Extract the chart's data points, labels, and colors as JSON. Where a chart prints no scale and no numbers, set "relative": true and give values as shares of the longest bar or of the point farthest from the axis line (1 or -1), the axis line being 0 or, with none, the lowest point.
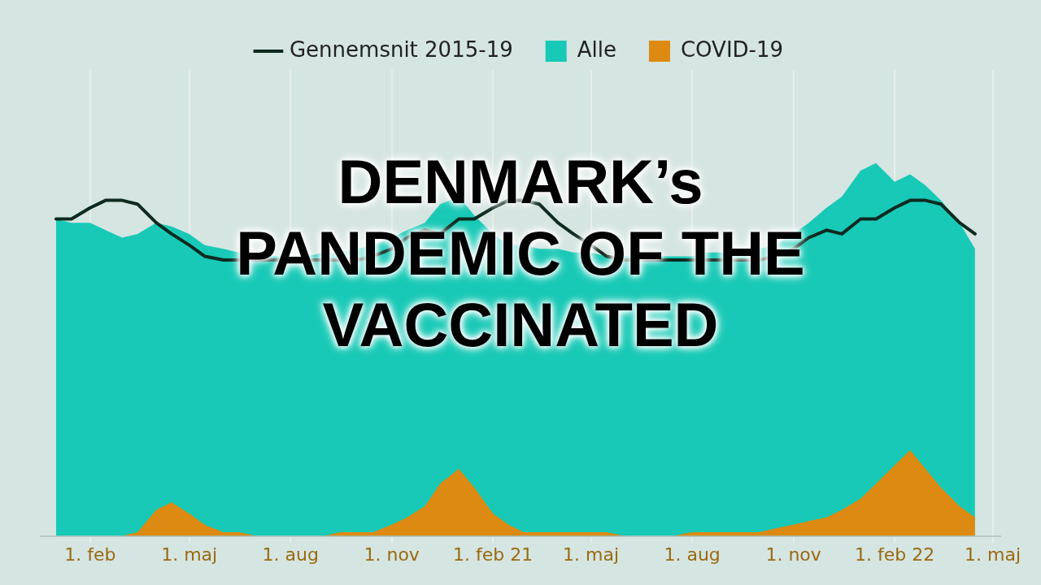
{
  "chart_data": {
    "type": "area",
    "title": "DENMARK’s PANDEMIC OF THE VACCINATED",
    "relative": true,
    "legend": "top",
    "grid": "x",
    "tick_labels": "x",
    "x": [
      "2020-01-01",
      "2020-01-15",
      "2020-02-01",
      "2020-02-15",
      "2020-03-01",
      "2020-03-15",
      "2020-04-01",
      "2020-04-15",
      "2020-05-01",
      "2020-05-15",
      "2020-06-01",
      "2020-06-15",
      "2020-07-01",
      "2020-07-15",
      "2020-08-01",
      "2020-08-15",
      "2020-09-01",
      "2020-09-15",
      "2020-10-01",
      "2020-10-15",
      "2020-11-01",
      "2020-11-15",
      "2020-12-01",
      "2020-12-15",
      "2021-01-01",
      "2021-01-15",
      "2021-02-01",
      "2021-02-15",
      "2021-03-01",
      "2021-03-15",
      "2021-04-01",
      "2021-04-15",
      "2021-05-01",
      "2021-05-15",
      "2021-06-01",
      "2021-06-15",
      "2021-07-01",
      "2021-07-15",
      "2021-08-01",
      "2021-08-15",
      "2021-09-01",
      "2021-09-15",
      "2021-10-01",
      "2021-10-15",
      "2021-11-01",
      "2021-11-15",
      "2021-12-01",
      "2021-12-15",
      "2022-01-01",
      "2022-01-15",
      "2022-02-01",
      "2022-02-15",
      "2022-03-01",
      "2022-03-15",
      "2022-04-01",
      "2022-04-15"
    ],
    "xlim": [
      "2019-12-18",
      "2022-05-08"
    ],
    "xticks": [
      {
        "value": "2020-02-01",
        "label": "1. feb"
      },
      {
        "value": "2020-05-01",
        "label": "1. maj"
      },
      {
        "value": "2020-08-01",
        "label": "1. aug"
      },
      {
        "value": "2020-11-01",
        "label": "1. nov"
      },
      {
        "value": "2021-02-01",
        "label": "1. feb 21"
      },
      {
        "value": "2021-05-01",
        "label": "1. maj"
      },
      {
        "value": "2021-08-01",
        "label": "1. aug"
      },
      {
        "value": "2021-11-01",
        "label": "1. nov"
      },
      {
        "value": "2022-02-01",
        "label": "1. feb 22"
      },
      {
        "value": "2022-05-01",
        "label": "1. maj"
      }
    ],
    "series": [
      {
        "name": "Gennemsnit 2015-19",
        "type": "line",
        "color": "#0f2a1f",
        "values": [
          0.85,
          0.85,
          0.88,
          0.9,
          0.9,
          0.89,
          0.84,
          0.81,
          0.78,
          0.75,
          0.74,
          0.74,
          0.74,
          0.74,
          0.74,
          0.74,
          0.74,
          0.74,
          0.74,
          0.75,
          0.77,
          0.8,
          0.82,
          0.81,
          0.85,
          0.85,
          0.88,
          0.9,
          0.9,
          0.89,
          0.84,
          0.81,
          0.78,
          0.75,
          0.74,
          0.74,
          0.74,
          0.74,
          0.74,
          0.74,
          0.74,
          0.74,
          0.74,
          0.75,
          0.77,
          0.8,
          0.82,
          0.81,
          0.85,
          0.85,
          0.88,
          0.9,
          0.9,
          0.89,
          0.84,
          0.81
        ]
      },
      {
        "name": "Alle",
        "color": "#17c9b6",
        "values": [
          0.85,
          0.84,
          0.84,
          0.82,
          0.8,
          0.81,
          0.84,
          0.83,
          0.81,
          0.78,
          0.77,
          0.76,
          0.75,
          0.75,
          0.75,
          0.75,
          0.76,
          0.76,
          0.77,
          0.78,
          0.8,
          0.82,
          0.84,
          0.89,
          0.91,
          0.86,
          0.81,
          0.78,
          0.78,
          0.77,
          0.77,
          0.76,
          0.76,
          0.75,
          0.75,
          0.75,
          0.75,
          0.75,
          0.75,
          0.76,
          0.76,
          0.76,
          0.77,
          0.78,
          0.81,
          0.84,
          0.88,
          0.91,
          0.98,
          1,
          0.95,
          0.97,
          0.94,
          0.9,
          0.84,
          0.77
        ]
      },
      {
        "name": "COVID-19",
        "color": "#dd8a12",
        "values": [
          0,
          0,
          0,
          0,
          0,
          0.01,
          0.07,
          0.09,
          0.06,
          0.03,
          0.01,
          0.01,
          0,
          0,
          0,
          0,
          0,
          0.01,
          0.01,
          0.01,
          0.03,
          0.05,
          0.08,
          0.14,
          0.18,
          0.13,
          0.06,
          0.03,
          0.01,
          0.01,
          0.01,
          0.01,
          0.01,
          0.01,
          0,
          0,
          0,
          0,
          0.01,
          0.01,
          0.01,
          0.01,
          0.01,
          0.02,
          0.03,
          0.04,
          0.05,
          0.07,
          0.1,
          0.14,
          0.19,
          0.23,
          0.18,
          0.13,
          0.08,
          0.05
        ]
      }
    ]
  }
}
